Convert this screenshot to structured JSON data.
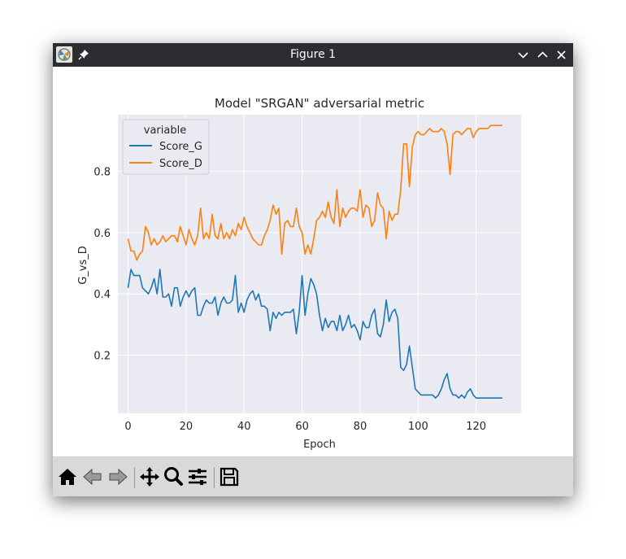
{
  "window": {
    "title": "Figure 1"
  },
  "toolbar": {
    "tools": [
      "home-icon",
      "back-icon",
      "forward-icon",
      "pan-icon",
      "zoom-icon",
      "configure-subplots-icon",
      "save-icon"
    ]
  },
  "colors": {
    "series_g": "#1f77b4",
    "series_d": "#ff7f0e",
    "plot_bg": "#eaeaf2",
    "titlebar": "#2b2d31"
  },
  "chart_data": {
    "type": "line",
    "title": "Model \"SRGAN\" adversarial metric",
    "xlabel": "Epoch",
    "ylabel": "G_vs_D",
    "xlim": [
      -3.5,
      135.5
    ],
    "ylim": [
      0.01,
      0.985
    ],
    "xticks": [
      0,
      20,
      40,
      60,
      80,
      100,
      120
    ],
    "yticks": [
      0.2,
      0.4,
      0.6,
      0.8
    ],
    "xtick_labels": [
      "0",
      "20",
      "40",
      "60",
      "80",
      "100",
      "120"
    ],
    "ytick_labels": [
      "0.2",
      "0.4",
      "0.6",
      "0.8"
    ],
    "grid": true,
    "legend": {
      "title": "variable",
      "placement": "upper-left"
    },
    "series": [
      {
        "name": "Score_G",
        "color": "#1f77b4",
        "values": [
          0.42,
          0.48,
          0.46,
          0.46,
          0.46,
          0.42,
          0.41,
          0.4,
          0.42,
          0.45,
          0.4,
          0.48,
          0.39,
          0.39,
          0.4,
          0.36,
          0.42,
          0.42,
          0.36,
          0.39,
          0.41,
          0.39,
          0.41,
          0.42,
          0.33,
          0.33,
          0.36,
          0.38,
          0.37,
          0.37,
          0.39,
          0.33,
          0.37,
          0.39,
          0.37,
          0.37,
          0.38,
          0.46,
          0.34,
          0.37,
          0.34,
          0.38,
          0.4,
          0.41,
          0.38,
          0.4,
          0.36,
          0.36,
          0.35,
          0.28,
          0.34,
          0.32,
          0.34,
          0.33,
          0.34,
          0.34,
          0.34,
          0.35,
          0.27,
          0.34,
          0.46,
          0.33,
          0.4,
          0.45,
          0.43,
          0.4,
          0.33,
          0.28,
          0.32,
          0.29,
          0.31,
          0.31,
          0.28,
          0.33,
          0.28,
          0.3,
          0.33,
          0.29,
          0.3,
          0.28,
          0.25,
          0.31,
          0.29,
          0.29,
          0.33,
          0.35,
          0.27,
          0.26,
          0.3,
          0.38,
          0.31,
          0.34,
          0.35,
          0.32,
          0.16,
          0.15,
          0.17,
          0.23,
          0.16,
          0.09,
          0.08,
          0.07,
          0.07,
          0.07,
          0.07,
          0.07,
          0.06,
          0.07,
          0.09,
          0.12,
          0.14,
          0.09,
          0.07,
          0.07,
          0.06,
          0.07,
          0.06,
          0.08,
          0.09,
          0.07,
          0.06,
          0.06,
          0.06,
          0.06,
          0.06,
          0.06,
          0.06,
          0.06,
          0.06,
          0.06
        ]
      },
      {
        "name": "Score_D",
        "color": "#ff7f0e",
        "values": [
          0.58,
          0.54,
          0.54,
          0.51,
          0.53,
          0.54,
          0.62,
          0.6,
          0.56,
          0.58,
          0.56,
          0.57,
          0.59,
          0.57,
          0.58,
          0.59,
          0.59,
          0.57,
          0.62,
          0.59,
          0.56,
          0.61,
          0.58,
          0.56,
          0.59,
          0.68,
          0.58,
          0.6,
          0.58,
          0.66,
          0.59,
          0.58,
          0.63,
          0.58,
          0.6,
          0.58,
          0.61,
          0.59,
          0.63,
          0.61,
          0.65,
          0.62,
          0.6,
          0.58,
          0.57,
          0.56,
          0.56,
          0.59,
          0.61,
          0.64,
          0.69,
          0.66,
          0.68,
          0.53,
          0.63,
          0.64,
          0.62,
          0.62,
          0.68,
          0.62,
          0.6,
          0.53,
          0.56,
          0.53,
          0.58,
          0.64,
          0.65,
          0.67,
          0.65,
          0.7,
          0.65,
          0.63,
          0.74,
          0.62,
          0.68,
          0.65,
          0.67,
          0.68,
          0.68,
          0.67,
          0.74,
          0.65,
          0.69,
          0.68,
          0.62,
          0.64,
          0.73,
          0.69,
          0.68,
          0.58,
          0.67,
          0.64,
          0.66,
          0.66,
          0.74,
          0.89,
          0.89,
          0.75,
          0.88,
          0.92,
          0.93,
          0.92,
          0.92,
          0.93,
          0.94,
          0.93,
          0.93,
          0.93,
          0.94,
          0.93,
          0.89,
          0.79,
          0.92,
          0.93,
          0.93,
          0.92,
          0.93,
          0.94,
          0.94,
          0.91,
          0.93,
          0.94,
          0.94,
          0.94,
          0.94,
          0.95,
          0.95,
          0.95,
          0.95,
          0.95
        ]
      }
    ]
  }
}
